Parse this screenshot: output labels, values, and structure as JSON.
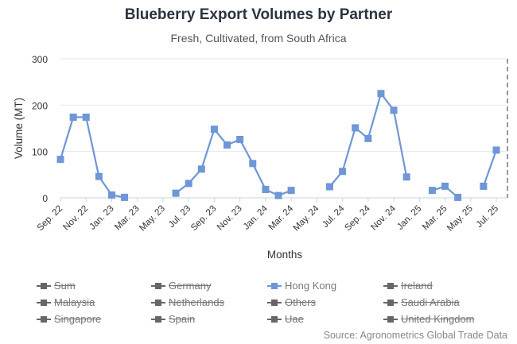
{
  "title": "Blueberry Export Volumes by Partner",
  "subtitle": "Fresh, Cultivated, from South Africa",
  "source": "Source: Agronometrics Global Trade Data",
  "chart_data": {
    "type": "line",
    "xlabel": "Months",
    "ylabel": "Volume (MT)",
    "ylim": [
      0,
      300
    ],
    "yticks": [
      0,
      100,
      200,
      300
    ],
    "grid": true,
    "legend_position": "bottom",
    "categories": [
      "Sep. 22",
      "Oct. 22",
      "Nov. 22",
      "Dec. 22",
      "Jan. 23",
      "Feb. 23",
      "Mar. 23",
      "Apr. 23",
      "May. 23",
      "Jun. 23",
      "Jul. 23",
      "Aug. 23",
      "Sep. 23",
      "Oct. 23",
      "Nov. 23",
      "Dec. 23",
      "Jan. 24",
      "Feb. 24",
      "Mar. 24",
      "Apr. 24",
      "May. 24",
      "Jun. 24",
      "Jul. 24",
      "Aug. 24",
      "Sep. 24",
      "Oct. 24",
      "Nov. 24",
      "Dec. 24",
      "Jan. 25",
      "Feb. 25",
      "Mar. 25",
      "Apr. 25",
      "May. 25",
      "Jun. 25",
      "Jul. 25"
    ],
    "tick_labels": [
      "Sep. 22",
      "Nov. 22",
      "Jan. 23",
      "Mar. 23",
      "May. 23",
      "Jul. 23",
      "Sep. 23",
      "Nov. 23",
      "Jan. 24",
      "Mar. 24",
      "May. 24",
      "Jul. 24",
      "Sep. 24",
      "Nov. 24",
      "Jan. 25",
      "Mar. 25",
      "May. 25",
      "Jul. 25"
    ],
    "series": [
      {
        "name": "Hong Kong",
        "color": "#6f96d6",
        "visible": true,
        "values": [
          83,
          174,
          174,
          46,
          6,
          1,
          null,
          null,
          null,
          10,
          31,
          62,
          148,
          114,
          126,
          74,
          18,
          5,
          16,
          null,
          null,
          24,
          57,
          151,
          128,
          225,
          189,
          45,
          null,
          16,
          25,
          1,
          null,
          25,
          103
        ]
      }
    ],
    "legend": [
      {
        "name": "Sum",
        "visible": false,
        "color": "#666666"
      },
      {
        "name": "Germany",
        "visible": false,
        "color": "#666666"
      },
      {
        "name": "Hong Kong",
        "visible": true,
        "color": "#6f96d6"
      },
      {
        "name": "Ireland",
        "visible": false,
        "color": "#666666"
      },
      {
        "name": "Malaysia",
        "visible": false,
        "color": "#666666"
      },
      {
        "name": "Netherlands",
        "visible": false,
        "color": "#666666"
      },
      {
        "name": "Others",
        "visible": false,
        "color": "#666666"
      },
      {
        "name": "Saudi Arabia",
        "visible": false,
        "color": "#666666"
      },
      {
        "name": "Singapore",
        "visible": false,
        "color": "#666666"
      },
      {
        "name": "Spain",
        "visible": false,
        "color": "#666666"
      },
      {
        "name": "Uae",
        "visible": false,
        "color": "#666666"
      },
      {
        "name": "United Kingdom",
        "visible": false,
        "color": "#666666"
      }
    ]
  }
}
